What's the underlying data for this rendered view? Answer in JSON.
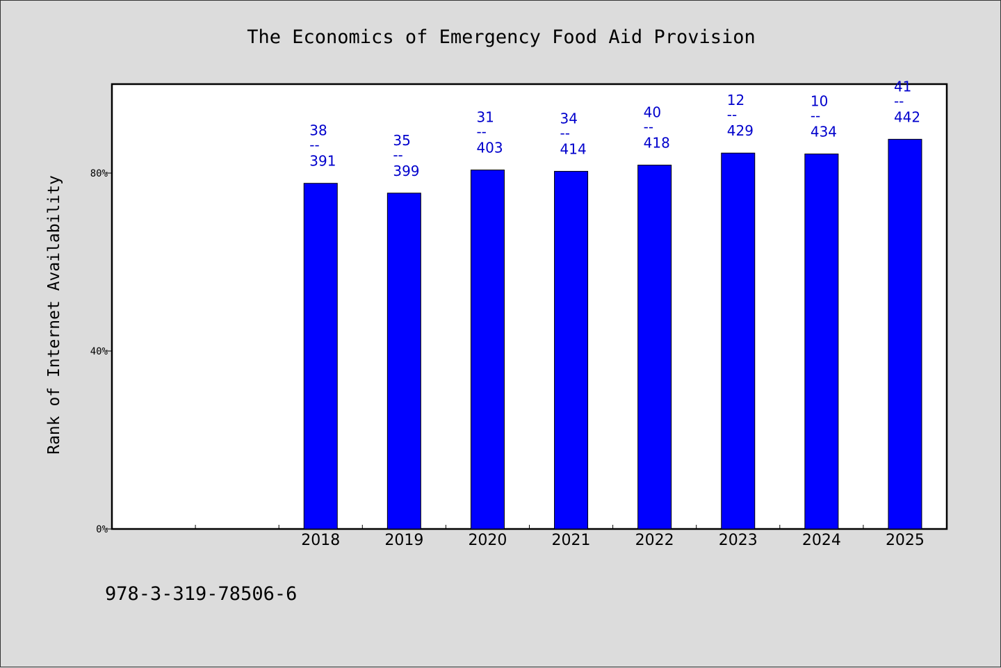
{
  "chart_data": {
    "type": "bar",
    "title": "The Economics of Emergency Food Aid Provision",
    "ylabel": "Rank of Internet Availability",
    "xlabel": "",
    "ylim": [
      0,
      100
    ],
    "yticks": [
      {
        "value": 0,
        "label": "0%"
      },
      {
        "value": 40,
        "label": "40%"
      },
      {
        "value": 80,
        "label": "80%"
      }
    ],
    "x_slots": [
      "",
      "",
      "2018",
      "2019",
      "2020",
      "2021",
      "2022",
      "2023",
      "2024",
      "2025"
    ],
    "categories": [
      "2018",
      "2019",
      "2020",
      "2021",
      "2022",
      "2023",
      "2024",
      "2025"
    ],
    "values": [
      77.7,
      75.5,
      80.7,
      80.4,
      81.8,
      84.5,
      84.3,
      87.6
    ],
    "data_labels": [
      {
        "rank": "38",
        "sep": "--",
        "total": "391"
      },
      {
        "rank": "35",
        "sep": "--",
        "total": "399"
      },
      {
        "rank": "31",
        "sep": "--",
        "total": "403"
      },
      {
        "rank": "34",
        "sep": "--",
        "total": "414"
      },
      {
        "rank": "40",
        "sep": "--",
        "total": "418"
      },
      {
        "rank": "12",
        "sep": "--",
        "total": "429"
      },
      {
        "rank": "10",
        "sep": "--",
        "total": "434"
      },
      {
        "rank": "41",
        "sep": "--",
        "total": "442"
      }
    ],
    "bar_color": "#0000ff",
    "label_color": "#0000cc",
    "grid": false,
    "legend": "none"
  },
  "footer": {
    "isbn": "978-3-319-78506-6"
  }
}
